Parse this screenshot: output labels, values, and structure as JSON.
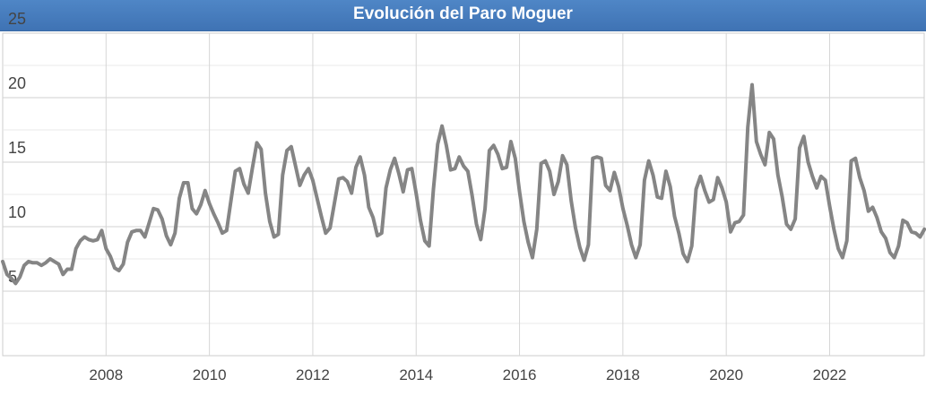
{
  "chart_data": {
    "type": "line",
    "title": "Evolución del Paro Moguer",
    "xlabel": "",
    "ylabel": "",
    "xlim": [
      2006.0,
      2023.83
    ],
    "ylim": [
      0,
      25
    ],
    "x_ticks": [
      2008,
      2010,
      2012,
      2014,
      2016,
      2018,
      2020,
      2022
    ],
    "x_tick_labels": [
      "2008",
      "2010",
      "2012",
      "2014",
      "2016",
      "2018",
      "2020",
      "2022"
    ],
    "y_ticks": [
      5,
      10,
      15,
      20,
      25
    ],
    "y_tick_labels": [
      "5",
      "10",
      "15",
      "20",
      "25"
    ],
    "grid": true,
    "legend": "none",
    "colors": {
      "line": "#858585",
      "grid": "#d6d6d6",
      "title_bg": "#4a7ebf",
      "title_text": "#ffffff",
      "tick_text": "#444444"
    },
    "series": [
      {
        "x_start": 2006.0,
        "x_step": 0.0833333,
        "values": [
          7.3,
          6.3,
          6.0,
          5.6,
          6.1,
          7.0,
          7.3,
          7.2,
          7.2,
          7.0,
          7.2,
          7.5,
          7.3,
          7.1,
          6.3,
          6.7,
          6.7,
          8.3,
          8.9,
          9.2,
          9.0,
          8.9,
          9.0,
          9.7,
          8.3,
          7.7,
          6.8,
          6.6,
          7.1,
          8.8,
          9.6,
          9.7,
          9.7,
          9.2,
          10.3,
          11.4,
          11.3,
          10.6,
          9.3,
          8.6,
          9.5,
          12.2,
          13.4,
          13.4,
          11.4,
          11.0,
          11.7,
          12.8,
          11.8,
          11.0,
          10.3,
          9.5,
          9.7,
          12.0,
          14.3,
          14.5,
          13.3,
          12.6,
          14.6,
          16.5,
          16.0,
          12.6,
          10.4,
          9.2,
          9.4,
          14.0,
          15.9,
          16.2,
          14.7,
          13.2,
          14.0,
          14.5,
          13.6,
          12.2,
          10.8,
          9.5,
          9.9,
          11.8,
          13.7,
          13.8,
          13.5,
          12.6,
          14.6,
          15.4,
          14.0,
          11.5,
          10.7,
          9.3,
          9.5,
          13.0,
          14.4,
          15.3,
          14.1,
          12.7,
          14.4,
          14.5,
          12.6,
          10.5,
          8.9,
          8.5,
          12.9,
          16.4,
          17.8,
          16.3,
          14.4,
          14.5,
          15.4,
          14.7,
          14.3,
          12.4,
          10.2,
          9.0,
          11.4,
          15.9,
          16.3,
          15.6,
          14.5,
          14.6,
          16.6,
          15.3,
          12.7,
          10.4,
          8.8,
          7.6,
          9.8,
          14.9,
          15.1,
          14.3,
          12.5,
          13.5,
          15.5,
          14.8,
          12.0,
          9.9,
          8.4,
          7.4,
          8.6,
          15.3,
          15.4,
          15.3,
          13.2,
          12.8,
          14.2,
          13.1,
          11.4,
          10.1,
          8.6,
          7.6,
          8.6,
          13.6,
          15.1,
          14.0,
          12.3,
          12.2,
          14.3,
          13.1,
          10.8,
          9.5,
          7.9,
          7.3,
          8.5,
          12.9,
          13.9,
          12.8,
          11.9,
          12.1,
          13.8,
          13.0,
          11.9,
          9.6,
          10.3,
          10.4,
          10.9,
          17.7,
          21.0,
          16.6,
          15.6,
          14.8,
          17.3,
          16.8,
          14.0,
          12.3,
          10.2,
          9.8,
          10.6,
          16.1,
          17.0,
          15.0,
          13.9,
          13.0,
          13.9,
          13.6,
          11.6,
          9.8,
          8.3,
          7.6,
          8.9,
          15.1,
          15.3,
          13.8,
          12.8,
          11.2,
          11.5,
          10.7,
          9.6,
          9.1,
          8.0,
          7.6,
          8.5,
          10.5,
          10.3,
          9.6,
          9.5,
          9.2,
          9.8
        ]
      }
    ]
  }
}
